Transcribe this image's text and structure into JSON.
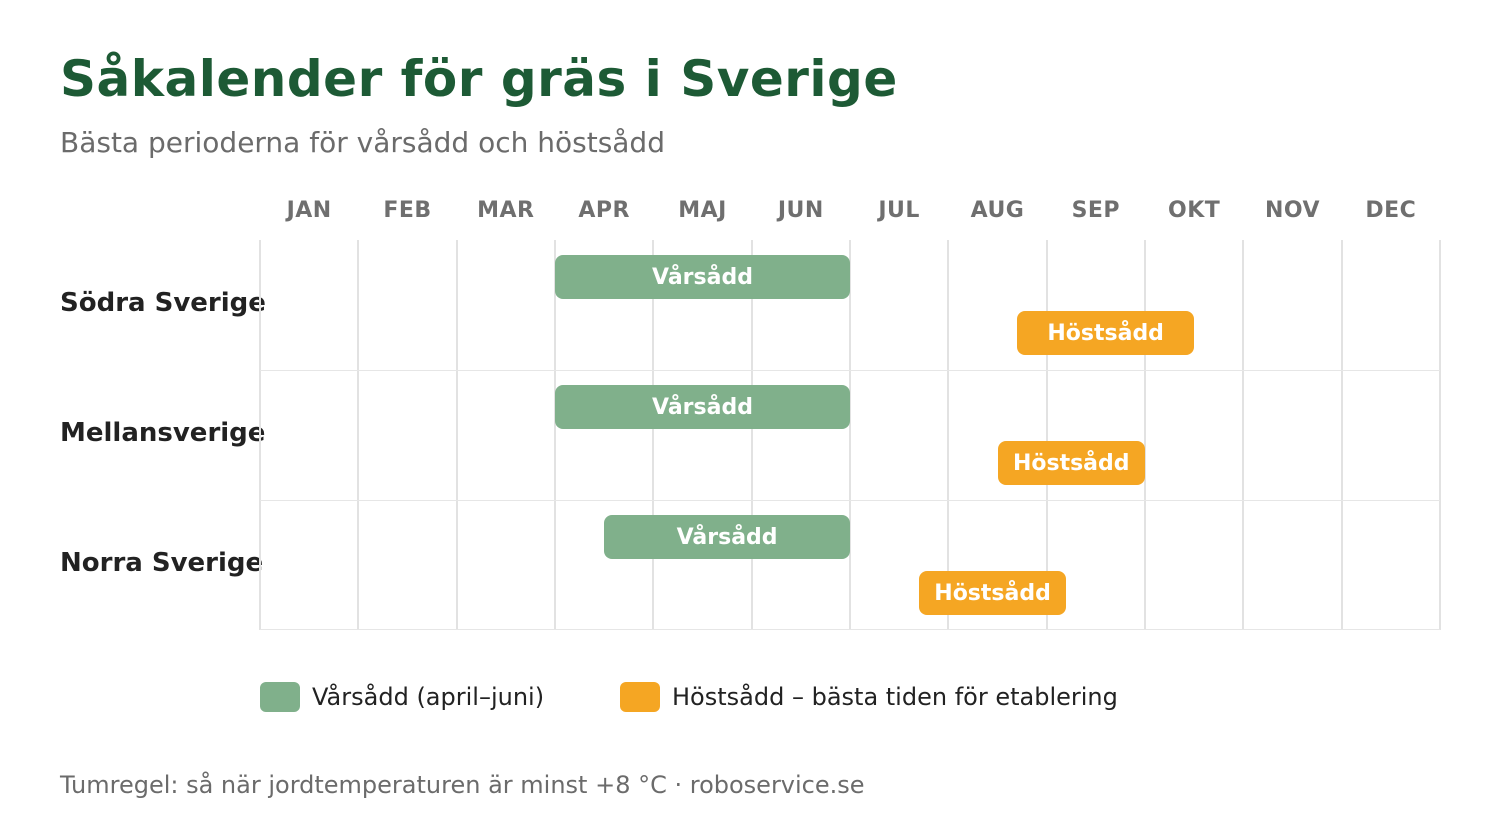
{
  "chart_data": {
    "type": "gantt",
    "title": "Såkalender för gräs i Sverige",
    "subtitle": "Bästa perioderna för vårsådd och höstsådd",
    "months": [
      "JAN",
      "FEB",
      "MAR",
      "APR",
      "MAJ",
      "JUN",
      "JUL",
      "AUG",
      "SEP",
      "OKT",
      "NOV",
      "DEC"
    ],
    "colors": {
      "spring": "#80b08b",
      "autumn": "#f5a623",
      "title": "#1d5a35"
    },
    "regions": [
      {
        "name": "Södra Sverige",
        "bars": [
          {
            "label": "Vårsådd",
            "kind": "spring",
            "start_month": 4.0,
            "end_month": 7.0
          },
          {
            "label": "Höstsådd",
            "kind": "autumn",
            "start_month": 8.7,
            "end_month": 10.5
          }
        ]
      },
      {
        "name": "Mellansverige",
        "bars": [
          {
            "label": "Vårsådd",
            "kind": "spring",
            "start_month": 4.0,
            "end_month": 7.0
          },
          {
            "label": "Höstsådd",
            "kind": "autumn",
            "start_month": 8.5,
            "end_month": 10.0
          }
        ]
      },
      {
        "name": "Norra Sverige",
        "bars": [
          {
            "label": "Vårsådd",
            "kind": "spring",
            "start_month": 4.5,
            "end_month": 7.0
          },
          {
            "label": "Höstsådd",
            "kind": "autumn",
            "start_month": 7.7,
            "end_month": 9.2
          }
        ]
      }
    ],
    "legend": [
      {
        "label": "Vårsådd (april–juni)",
        "kind": "spring"
      },
      {
        "label": "Höstsådd – bästa tiden för etablering",
        "kind": "autumn"
      }
    ]
  },
  "footer": "Tumregel: så när jordtemperaturen är minst +8 °C  ·  roboservice.se"
}
